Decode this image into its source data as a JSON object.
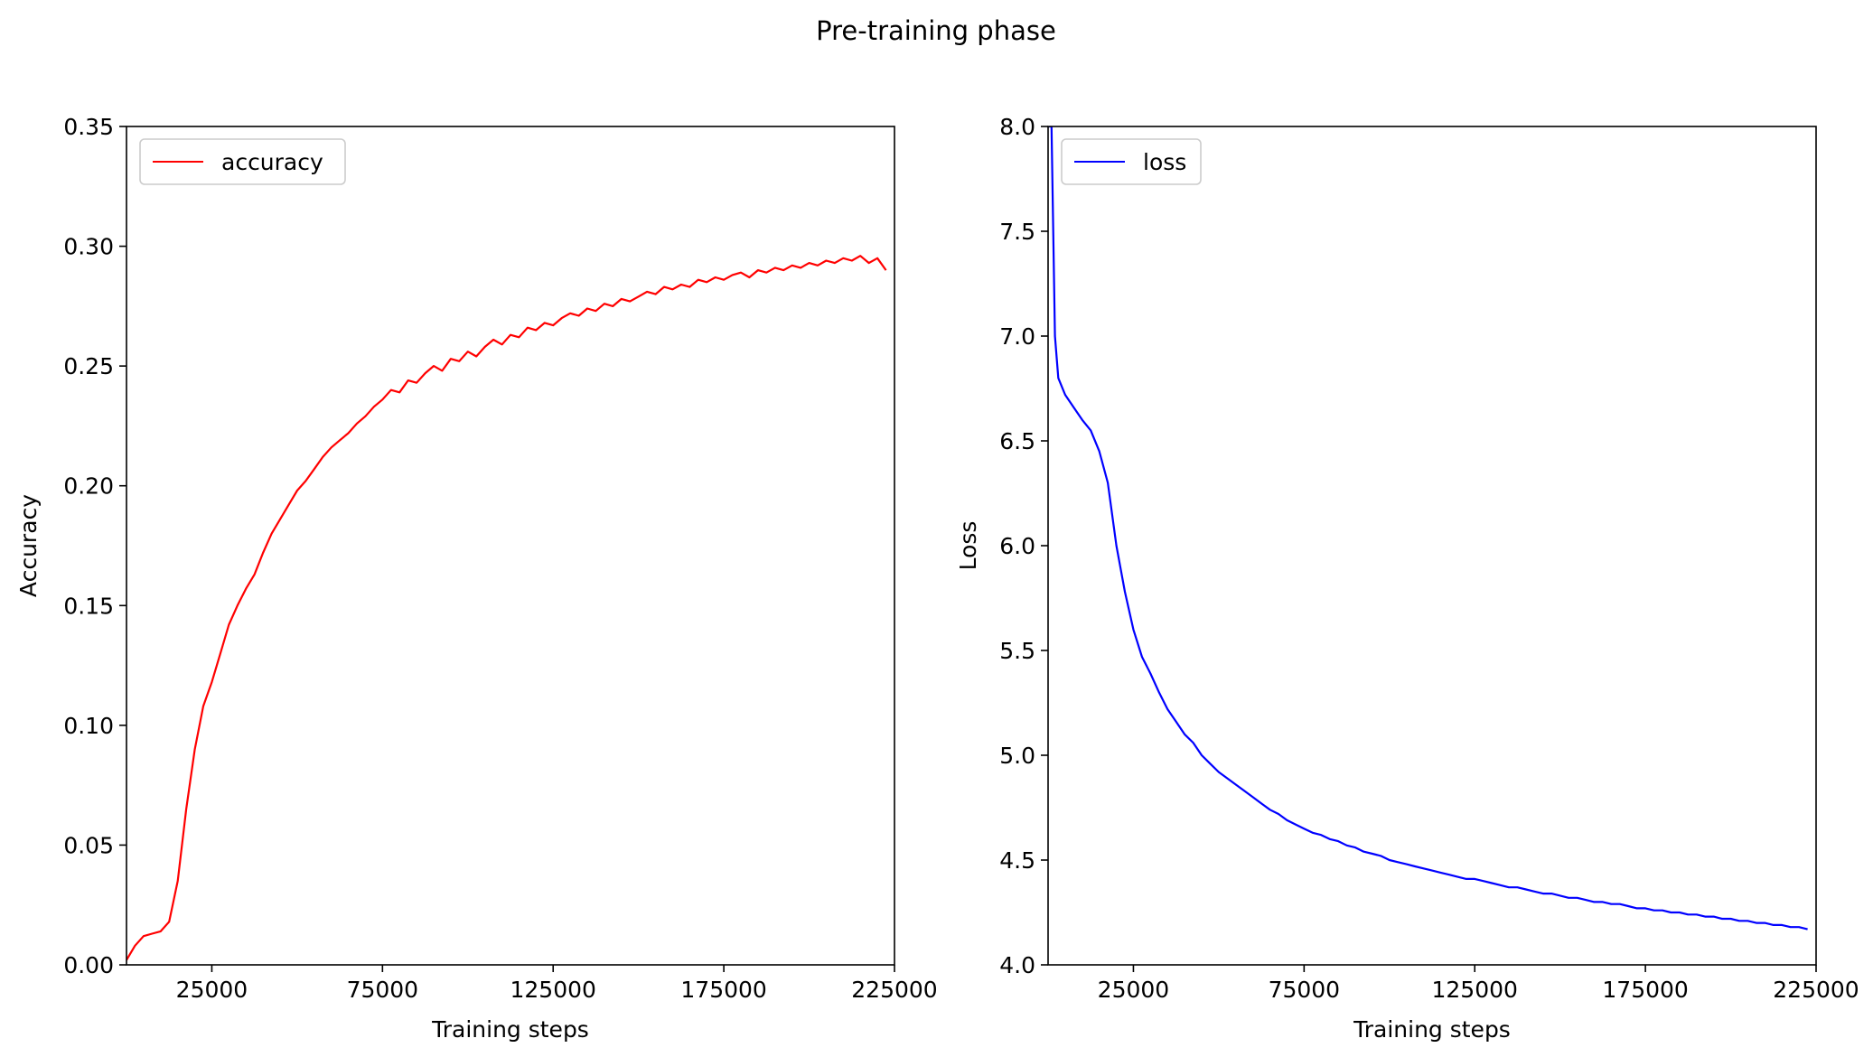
{
  "figure": {
    "title": "Pre-training phase",
    "background": "#ffffff"
  },
  "chart_data": [
    {
      "type": "line",
      "title": "",
      "xlabel": "Training steps",
      "ylabel": "Accuracy",
      "xlim": [
        0,
        225000
      ],
      "ylim": [
        0.0,
        0.35
      ],
      "xticks": [
        25000,
        75000,
        125000,
        175000,
        225000
      ],
      "xtick_labels": [
        "25000",
        "75000",
        "125000",
        "175000",
        "225000"
      ],
      "yticks": [
        0.0,
        0.05,
        0.1,
        0.15,
        0.2,
        0.25,
        0.3,
        0.35
      ],
      "ytick_labels": [
        "0.00",
        "0.05",
        "0.10",
        "0.15",
        "0.20",
        "0.25",
        "0.30",
        "0.35"
      ],
      "grid": false,
      "legend": {
        "position": "upper-left",
        "entries": [
          "accuracy"
        ]
      },
      "series": [
        {
          "name": "accuracy",
          "color": "#ff0000",
          "x": [
            0,
            2500,
            5000,
            7500,
            10000,
            12500,
            15000,
            17500,
            20000,
            22500,
            25000,
            27500,
            30000,
            32500,
            35000,
            37500,
            40000,
            42500,
            45000,
            47500,
            50000,
            52500,
            55000,
            57500,
            60000,
            62500,
            65000,
            67500,
            70000,
            72500,
            75000,
            77500,
            80000,
            82500,
            85000,
            87500,
            90000,
            92500,
            95000,
            97500,
            100000,
            102500,
            105000,
            107500,
            110000,
            112500,
            115000,
            117500,
            120000,
            122500,
            125000,
            127500,
            130000,
            132500,
            135000,
            137500,
            140000,
            142500,
            145000,
            147500,
            150000,
            152500,
            155000,
            157500,
            160000,
            162500,
            165000,
            167500,
            170000,
            172500,
            175000,
            177500,
            180000,
            182500,
            185000,
            187500,
            190000,
            192500,
            195000,
            197500,
            200000,
            202500,
            205000,
            207500,
            210000,
            212500,
            215000,
            217500,
            220000,
            222500
          ],
          "values": [
            0.002,
            0.008,
            0.012,
            0.013,
            0.014,
            0.018,
            0.035,
            0.065,
            0.09,
            0.108,
            0.118,
            0.13,
            0.142,
            0.15,
            0.157,
            0.163,
            0.172,
            0.18,
            0.186,
            0.192,
            0.198,
            0.202,
            0.207,
            0.212,
            0.216,
            0.219,
            0.222,
            0.226,
            0.229,
            0.233,
            0.236,
            0.24,
            0.239,
            0.244,
            0.243,
            0.247,
            0.25,
            0.248,
            0.253,
            0.252,
            0.256,
            0.254,
            0.258,
            0.261,
            0.259,
            0.263,
            0.262,
            0.266,
            0.265,
            0.268,
            0.267,
            0.27,
            0.272,
            0.271,
            0.274,
            0.273,
            0.276,
            0.275,
            0.278,
            0.277,
            0.279,
            0.281,
            0.28,
            0.283,
            0.282,
            0.284,
            0.283,
            0.286,
            0.285,
            0.287,
            0.286,
            0.288,
            0.289,
            0.287,
            0.29,
            0.289,
            0.291,
            0.29,
            0.292,
            0.291,
            0.293,
            0.292,
            0.294,
            0.293,
            0.295,
            0.294,
            0.296,
            0.293,
            0.295,
            0.29
          ]
        }
      ]
    },
    {
      "type": "line",
      "title": "",
      "xlabel": "Training steps",
      "ylabel": "Loss",
      "xlim": [
        0,
        225000
      ],
      "ylim": [
        4.0,
        8.0
      ],
      "xticks": [
        25000,
        75000,
        125000,
        175000,
        225000
      ],
      "xtick_labels": [
        "25000",
        "75000",
        "125000",
        "175000",
        "225000"
      ],
      "yticks": [
        4.0,
        4.5,
        5.0,
        5.5,
        6.0,
        6.5,
        7.0,
        7.5,
        8.0
      ],
      "ytick_labels": [
        "4.0",
        "4.5",
        "5.0",
        "5.5",
        "6.0",
        "6.5",
        "7.0",
        "7.5",
        "8.0"
      ],
      "grid": false,
      "legend": {
        "position": "upper-left",
        "entries": [
          "loss"
        ]
      },
      "series": [
        {
          "name": "loss",
          "color": "#0000ff",
          "x": [
            0,
            1000,
            2000,
            3000,
            5000,
            7500,
            10000,
            12500,
            15000,
            17500,
            20000,
            22500,
            25000,
            27500,
            30000,
            32500,
            35000,
            37500,
            40000,
            42500,
            45000,
            47500,
            50000,
            52500,
            55000,
            57500,
            60000,
            62500,
            65000,
            67500,
            70000,
            72500,
            75000,
            77500,
            80000,
            82500,
            85000,
            87500,
            90000,
            92500,
            95000,
            97500,
            100000,
            102500,
            105000,
            107500,
            110000,
            112500,
            115000,
            117500,
            120000,
            122500,
            125000,
            127500,
            130000,
            132500,
            135000,
            137500,
            140000,
            142500,
            145000,
            147500,
            150000,
            152500,
            155000,
            157500,
            160000,
            162500,
            165000,
            167500,
            170000,
            172500,
            175000,
            177500,
            180000,
            182500,
            185000,
            187500,
            190000,
            192500,
            195000,
            197500,
            200000,
            202500,
            205000,
            207500,
            210000,
            212500,
            215000,
            217500,
            220000,
            222500
          ],
          "values": [
            8.0,
            8.0,
            7.0,
            6.8,
            6.72,
            6.66,
            6.6,
            6.55,
            6.45,
            6.3,
            6.0,
            5.78,
            5.6,
            5.47,
            5.39,
            5.3,
            5.22,
            5.16,
            5.1,
            5.06,
            5.0,
            4.96,
            4.92,
            4.89,
            4.86,
            4.83,
            4.8,
            4.77,
            4.74,
            4.72,
            4.69,
            4.67,
            4.65,
            4.63,
            4.62,
            4.6,
            4.59,
            4.57,
            4.56,
            4.54,
            4.53,
            4.52,
            4.5,
            4.49,
            4.48,
            4.47,
            4.46,
            4.45,
            4.44,
            4.43,
            4.42,
            4.41,
            4.41,
            4.4,
            4.39,
            4.38,
            4.37,
            4.37,
            4.36,
            4.35,
            4.34,
            4.34,
            4.33,
            4.32,
            4.32,
            4.31,
            4.3,
            4.3,
            4.29,
            4.29,
            4.28,
            4.27,
            4.27,
            4.26,
            4.26,
            4.25,
            4.25,
            4.24,
            4.24,
            4.23,
            4.23,
            4.22,
            4.22,
            4.21,
            4.21,
            4.2,
            4.2,
            4.19,
            4.19,
            4.18,
            4.18,
            4.17
          ]
        }
      ]
    }
  ]
}
